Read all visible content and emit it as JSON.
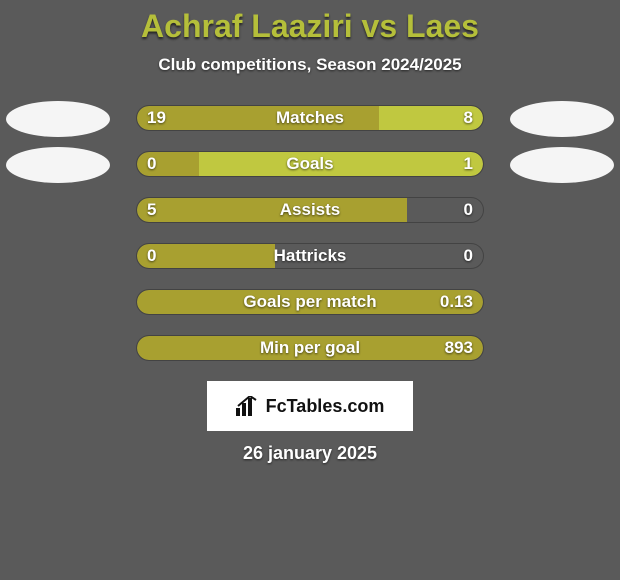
{
  "colors": {
    "background": "#5a5a5a",
    "accent": "#b5bf3a",
    "player1_bar": "#a8a030",
    "player2_bar": "#c0c840",
    "white": "#ffffff",
    "avatar_bg": "#f5f5f5"
  },
  "title": "Achraf Laaziri vs Laes",
  "subtitle": "Club competitions, Season 2024/2025",
  "stats": [
    {
      "label": "Matches",
      "left_val": "19",
      "right_val": "8",
      "left_pct": 70,
      "right_pct": 30,
      "show_avatars": true
    },
    {
      "label": "Goals",
      "left_val": "0",
      "right_val": "1",
      "left_pct": 18,
      "right_pct": 82,
      "show_avatars": true
    },
    {
      "label": "Assists",
      "left_val": "5",
      "right_val": "0",
      "left_pct": 78,
      "right_pct": 0,
      "show_avatars": false
    },
    {
      "label": "Hattricks",
      "left_val": "0",
      "right_val": "0",
      "left_pct": 40,
      "right_pct": 0,
      "show_avatars": false
    },
    {
      "label": "Goals per match",
      "left_val": "",
      "right_val": "0.13",
      "left_pct": 100,
      "right_pct": 0,
      "show_avatars": false,
      "full": true
    },
    {
      "label": "Min per goal",
      "left_val": "",
      "right_val": "893",
      "left_pct": 100,
      "right_pct": 0,
      "show_avatars": false,
      "full": true
    }
  ],
  "watermark": "FcTables.com",
  "footer_date": "26 january 2025"
}
